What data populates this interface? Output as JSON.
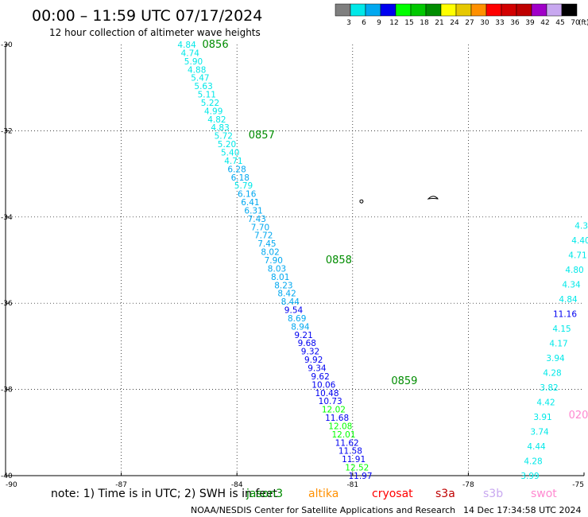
{
  "header": {
    "title": "00:00 – 11:59 UTC 07/17/2024",
    "subtitle": "12 hour collection of altimeter wave heights"
  },
  "colorbar": {
    "unit": "(ft)",
    "labels": [
      "3",
      "6",
      "9",
      "12",
      "15",
      "18",
      "21",
      "24",
      "27",
      "30",
      "33",
      "36",
      "39",
      "42",
      "45",
      "70"
    ],
    "colors": [
      "#7f7f7f",
      "#00e8e8",
      "#00a8f0",
      "#0000f0",
      "#00ff00",
      "#00c800",
      "#008c00",
      "#ffff00",
      "#e6c800",
      "#ff9000",
      "#ff0000",
      "#d20000",
      "#be0000",
      "#a000c8",
      "#c8a8f0",
      "#000000"
    ]
  },
  "footer": {
    "note": "note: 1) Time is in UTC; 2) SWH is in feet",
    "satellites": [
      {
        "name": "jason3",
        "color": "#008c00"
      },
      {
        "name": "altika",
        "color": "#ff9000"
      },
      {
        "name": "cryosat",
        "color": "#ff0000"
      },
      {
        "name": "s3a",
        "color": "#be0000"
      },
      {
        "name": "s3b",
        "color": "#c8a8f0"
      },
      {
        "name": "swot",
        "color": "#ff88d0"
      }
    ],
    "credit": "NOAA/NESDIS Center for Satellite Applications and Research",
    "timestamp": "14 Dec 17:34:58 UTC 2024"
  },
  "chart_data": {
    "type": "scatter",
    "xlim": [
      -90,
      -75
    ],
    "ylim": [
      -40,
      -30
    ],
    "x_ticks": [
      -90,
      -87,
      -84,
      -81,
      -78,
      -75
    ],
    "y_ticks": [
      -30,
      -32,
      -34,
      -36,
      -38,
      -40
    ],
    "grid": true,
    "pass_labels": [
      {
        "text": "0856",
        "x": -84.9,
        "y": -30.0,
        "color": "#008c00"
      },
      {
        "text": "0857",
        "x": -83.7,
        "y": -32.1,
        "color": "#008c00"
      },
      {
        "text": "0858",
        "x": -81.7,
        "y": -35.0,
        "color": "#008c00"
      },
      {
        "text": "0859",
        "x": -80.0,
        "y": -37.8,
        "color": "#008c00"
      }
    ],
    "series": [
      {
        "name": "jason3",
        "start": [
          -85.3,
          -30.0
        ],
        "end": [
          -80.8,
          -40.0
        ],
        "values": [
          4.84,
          4.74,
          5.9,
          4.88,
          5.47,
          5.63,
          5.11,
          5.22,
          4.99,
          4.82,
          4.83,
          5.72,
          5.2,
          5.4,
          4.71,
          6.28,
          6.18,
          5.79,
          6.16,
          6.41,
          6.31,
          7.43,
          7.7,
          7.72,
          7.45,
          8.02,
          7.9,
          8.03,
          8.01,
          8.23,
          8.42,
          8.44,
          9.54,
          8.69,
          8.94,
          9.21,
          9.68,
          9.32,
          9.92,
          9.34,
          9.62,
          10.06,
          10.48,
          10.73,
          12.02,
          11.68,
          12.08,
          12.01,
          11.62,
          11.58,
          11.91,
          12.52,
          11.97
        ]
      },
      {
        "name": "swot",
        "start": [
          -76.4,
          -40.0
        ],
        "end": [
          -75.0,
          -34.2
        ],
        "values": [
          3.99,
          4.28,
          4.44,
          3.74,
          3.91,
          4.42,
          3.82,
          4.28,
          3.94,
          4.17,
          4.15,
          11.16,
          4.84,
          4.34,
          4.8,
          4.71,
          4.4,
          4.3
        ]
      }
    ],
    "annotations": [
      {
        "text": "020",
        "x": -75.4,
        "y": -38.6,
        "color": "#ff88d0"
      }
    ]
  }
}
